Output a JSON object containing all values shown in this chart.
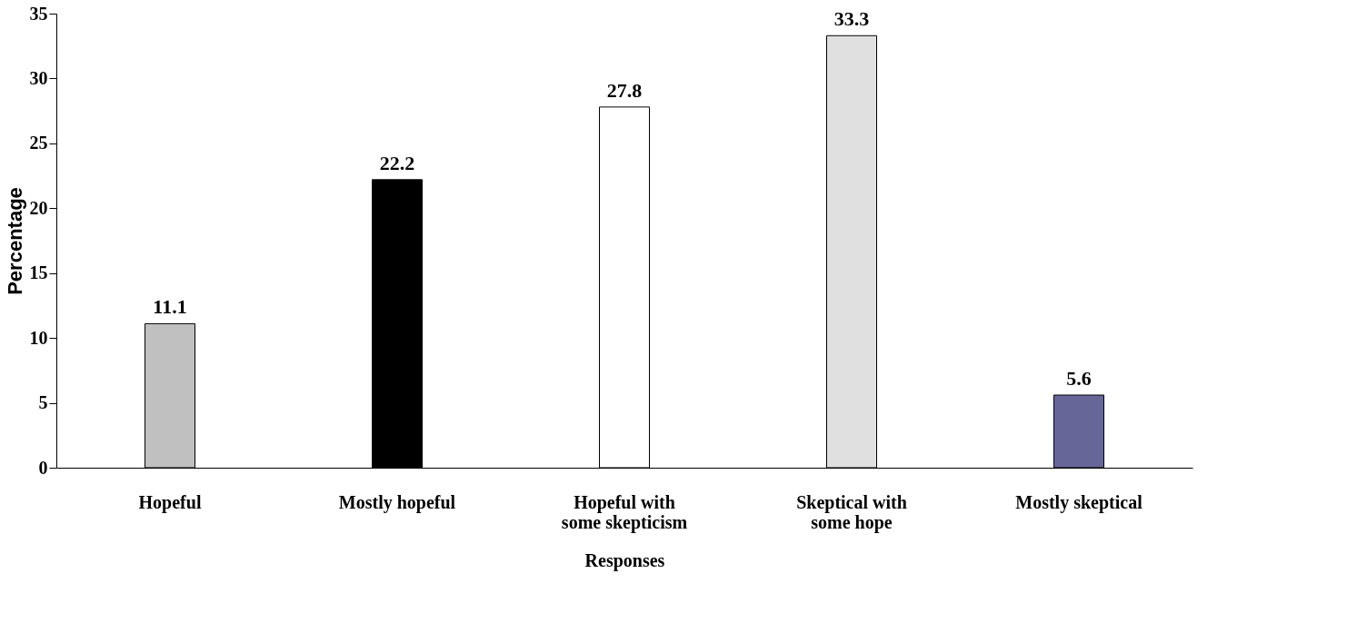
{
  "chart_data": {
    "type": "bar",
    "xlabel": "Responses",
    "ylabel": "Percentage",
    "categories": [
      "Hopeful",
      "Mostly hopeful",
      "Hopeful with\nsome skepticism",
      "Skeptical with\nsome hope",
      "Mostly skeptical"
    ],
    "values": [
      11.1,
      22.2,
      27.8,
      33.3,
      5.6
    ],
    "colors": [
      "#c0c0c0",
      "#000000",
      "#ffffff",
      "#e0e0e0",
      "#666699"
    ],
    "ylim": [
      0,
      35
    ],
    "yticks": [
      0,
      5,
      10,
      15,
      20,
      25,
      30,
      35
    ],
    "data_labels": true,
    "grid": false
  }
}
